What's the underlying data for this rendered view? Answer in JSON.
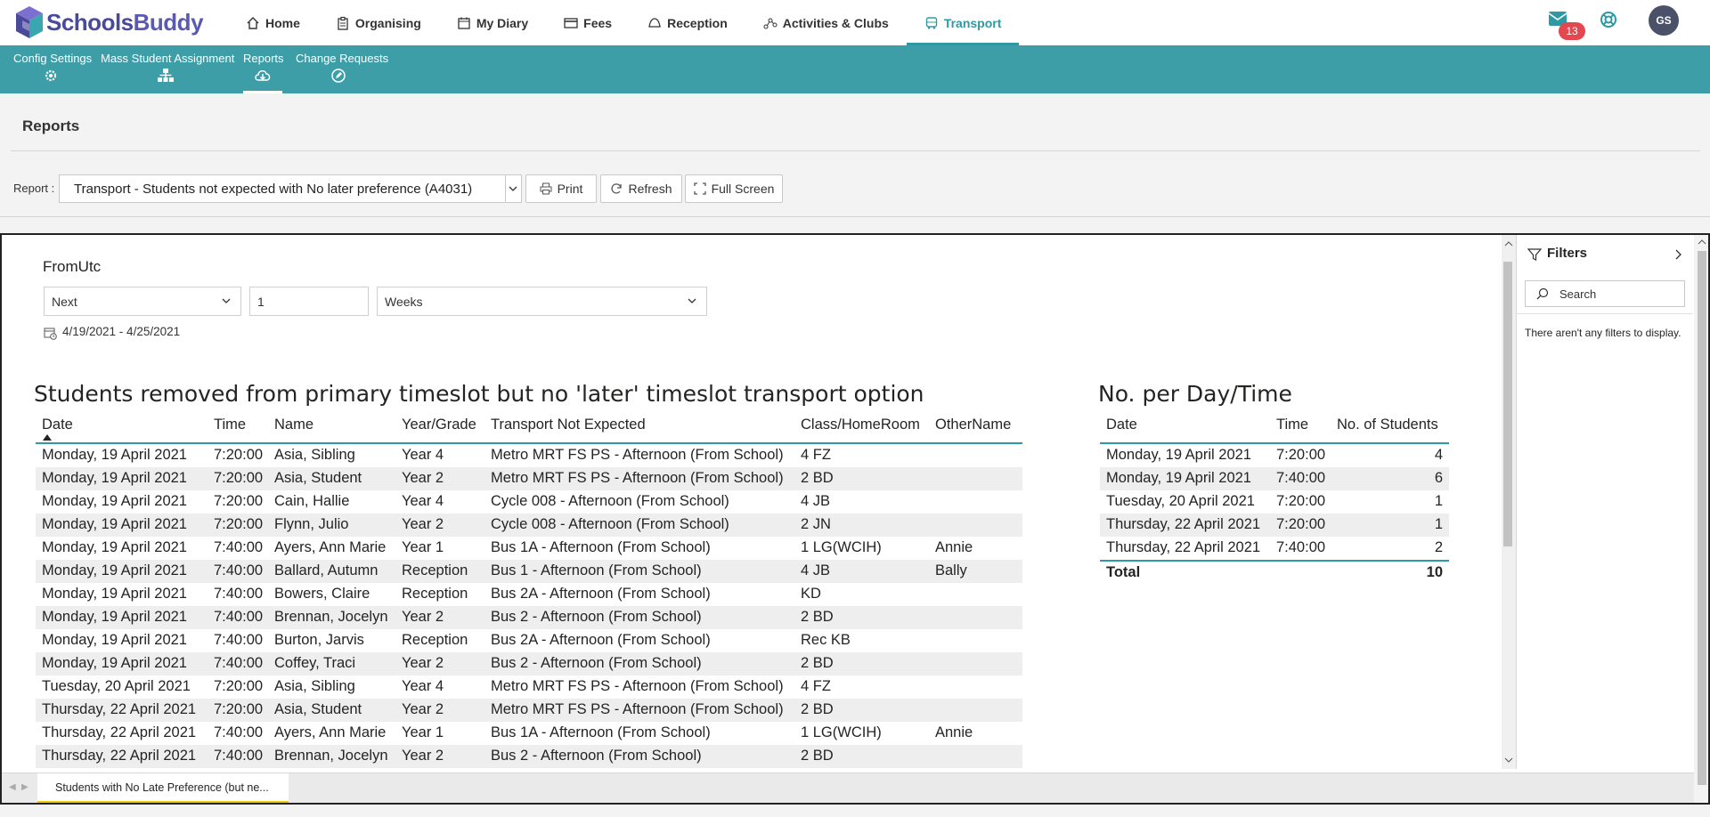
{
  "brand": {
    "name_a": "Schools",
    "name_b": "Buddy"
  },
  "nav": [
    {
      "label": "Home",
      "icon": "home-icon"
    },
    {
      "label": "Organising",
      "icon": "clipboard-icon"
    },
    {
      "label": "My Diary",
      "icon": "calendar-icon"
    },
    {
      "label": "Fees",
      "icon": "card-icon"
    },
    {
      "label": "Reception",
      "icon": "bell-icon"
    },
    {
      "label": "Activities & Clubs",
      "icon": "network-icon"
    },
    {
      "label": "Transport",
      "icon": "bus-icon"
    }
  ],
  "header_right": {
    "mail_count": "13",
    "avatar_initials": "GS"
  },
  "subnav": [
    {
      "label": "Config Settings",
      "icon": "gear-icon"
    },
    {
      "label": "Mass Student Assignment",
      "icon": "org-chart-icon"
    },
    {
      "label": "Reports",
      "icon": "cloud-download-icon"
    },
    {
      "label": "Change Requests",
      "icon": "edit-icon"
    }
  ],
  "page": {
    "title": "Reports",
    "report_label": "Report :",
    "report_value": "Transport - Students not expected with No later preference (A4031)",
    "print_label": "Print",
    "refresh_label": "Refresh",
    "fullscreen_label": "Full Screen"
  },
  "slicer": {
    "title": "FromUtc",
    "relative": "Next",
    "count": "1",
    "unit": "Weeks",
    "range": "4/19/2021 - 4/25/2021"
  },
  "main_table": {
    "title": "Students removed from primary timeslot but no 'later' timeslot transport option",
    "headers": [
      "Date",
      "Time",
      "Name",
      "Year/Grade",
      "Transport Not Expected",
      "Class/HomeRoom",
      "OtherName"
    ],
    "rows": [
      [
        "Monday, 19 April 2021",
        "7:20:00",
        "Asia, Sibling",
        "Year 4",
        "Metro MRT FS PS - Afternoon (From School)",
        "4 FZ",
        ""
      ],
      [
        "Monday, 19 April 2021",
        "7:20:00",
        "Asia, Student",
        "Year 2",
        "Metro MRT FS PS - Afternoon (From School)",
        "2 BD",
        ""
      ],
      [
        "Monday, 19 April 2021",
        "7:20:00",
        "Cain, Hallie",
        "Year 4",
        "Cycle 008 - Afternoon (From School)",
        "4 JB",
        ""
      ],
      [
        "Monday, 19 April 2021",
        "7:20:00",
        "Flynn, Julio",
        "Year 2",
        "Cycle 008 - Afternoon (From School)",
        "2 JN",
        ""
      ],
      [
        "Monday, 19 April 2021",
        "7:40:00",
        "Ayers, Ann Marie",
        "Year 1",
        "Bus 1A - Afternoon (From School)",
        "1 LG(WCIH)",
        "Annie"
      ],
      [
        "Monday, 19 April 2021",
        "7:40:00",
        "Ballard, Autumn",
        "Reception",
        "Bus 1 - Afternoon (From School)",
        "4 JB",
        "Bally"
      ],
      [
        "Monday, 19 April 2021",
        "7:40:00",
        "Bowers, Claire",
        "Reception",
        "Bus 2A - Afternoon (From School)",
        "KD",
        ""
      ],
      [
        "Monday, 19 April 2021",
        "7:40:00",
        "Brennan, Jocelyn",
        "Year 2",
        "Bus 2 - Afternoon (From School)",
        "2 BD",
        ""
      ],
      [
        "Monday, 19 April 2021",
        "7:40:00",
        "Burton, Jarvis",
        "Reception",
        "Bus 2A - Afternoon (From School)",
        "Rec KB",
        ""
      ],
      [
        "Monday, 19 April 2021",
        "7:40:00",
        "Coffey, Traci",
        "Year 2",
        "Bus 2 - Afternoon (From School)",
        "2 BD",
        ""
      ],
      [
        "Tuesday, 20 April 2021",
        "7:20:00",
        "Asia, Sibling",
        "Year 4",
        "Metro MRT FS PS - Afternoon (From School)",
        "4 FZ",
        ""
      ],
      [
        "Thursday, 22 April 2021",
        "7:20:00",
        "Asia, Student",
        "Year 2",
        "Metro MRT FS PS - Afternoon (From School)",
        "2 BD",
        ""
      ],
      [
        "Thursday, 22 April 2021",
        "7:40:00",
        "Ayers, Ann Marie",
        "Year 1",
        "Bus 1A - Afternoon (From School)",
        "1 LG(WCIH)",
        "Annie"
      ],
      [
        "Thursday, 22 April 2021",
        "7:40:00",
        "Brennan, Jocelyn",
        "Year 2",
        "Bus 2 - Afternoon (From School)",
        "2 BD",
        ""
      ]
    ]
  },
  "summary_table": {
    "title": "No. per Day/Time",
    "headers": [
      "Date",
      "Time",
      "No. of Students"
    ],
    "rows": [
      [
        "Monday, 19 April 2021",
        "7:20:00",
        "4"
      ],
      [
        "Monday, 19 April 2021",
        "7:40:00",
        "6"
      ],
      [
        "Tuesday, 20 April 2021",
        "7:20:00",
        "1"
      ],
      [
        "Thursday, 22 April 2021",
        "7:20:00",
        "1"
      ],
      [
        "Thursday, 22 April 2021",
        "7:40:00",
        "2"
      ]
    ],
    "total_label": "Total",
    "total_value": "10"
  },
  "filters": {
    "title": "Filters",
    "search_placeholder": "Search",
    "empty_text": "There aren't any filters to display."
  },
  "page_tab": {
    "label": "Students with No Late Preference (but ne..."
  },
  "colors": {
    "teal": "#3d9ea7",
    "active_nav": "#2f99a3",
    "badge": "#e4474f",
    "tab_accent": "#f2c811"
  }
}
